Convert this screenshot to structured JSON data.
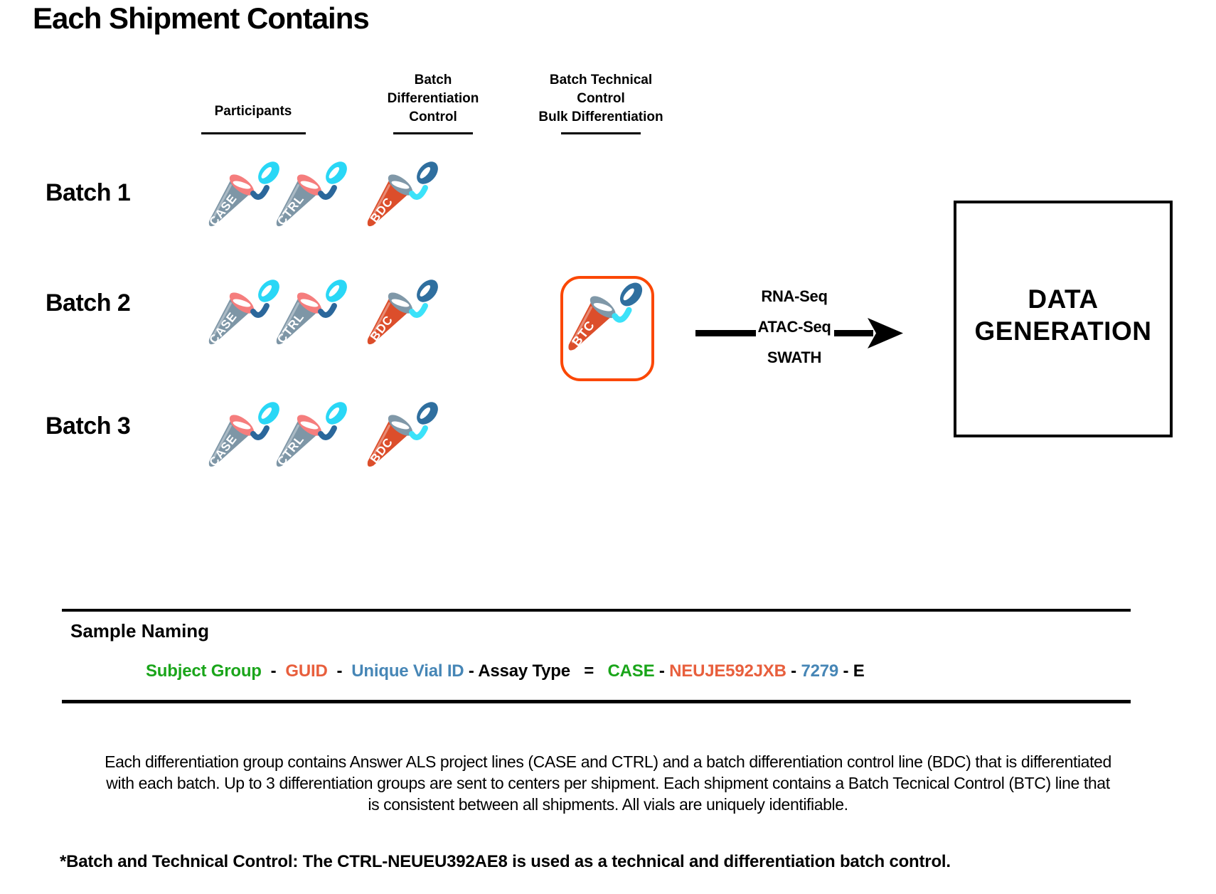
{
  "title": "Each Shipment Contains",
  "columns": {
    "participants": {
      "label": "Participants"
    },
    "bdc": {
      "lines": [
        "Batch",
        "Differentiation",
        "Control"
      ]
    },
    "btc": {
      "lines": [
        "Batch Technical",
        "Control",
        "Bulk Differentiation"
      ]
    }
  },
  "batches": [
    {
      "label": "Batch 1",
      "tubes": [
        {
          "id": "case",
          "label": "CASE",
          "scheme": "participant"
        },
        {
          "id": "ctrl",
          "label": "CTRL",
          "scheme": "participant"
        },
        {
          "id": "bdc",
          "label": "BDC",
          "scheme": "control"
        }
      ]
    },
    {
      "label": "Batch 2",
      "tubes": [
        {
          "id": "case",
          "label": "CASE",
          "scheme": "participant"
        },
        {
          "id": "ctrl",
          "label": "CTRL",
          "scheme": "participant"
        },
        {
          "id": "bdc",
          "label": "BDC",
          "scheme": "control"
        }
      ]
    },
    {
      "label": "Batch 3",
      "tubes": [
        {
          "id": "case",
          "label": "CASE",
          "scheme": "participant"
        },
        {
          "id": "ctrl",
          "label": "CTRL",
          "scheme": "participant"
        },
        {
          "id": "bdc",
          "label": "BDC",
          "scheme": "control"
        }
      ]
    }
  ],
  "btc_shipment": {
    "tube": {
      "id": "btc",
      "label": "BTC",
      "scheme": "control"
    }
  },
  "assays": [
    "RNA-Seq",
    "ATAC-Seq",
    "SWATH"
  ],
  "data_generation": {
    "lines": [
      "DATA",
      "GENERATION"
    ]
  },
  "sample_naming": {
    "title": "Sample Naming",
    "formula_parts": [
      {
        "text": "Subject Group",
        "color": "green"
      },
      {
        "text": "  -  ",
        "color": "black"
      },
      {
        "text": "GUID",
        "color": "orange"
      },
      {
        "text": "  -  ",
        "color": "black"
      },
      {
        "text": "Unique Vial ID",
        "color": "blue"
      },
      {
        "text": " - ",
        "color": "black"
      },
      {
        "text": "Assay Type",
        "color": "black"
      },
      {
        "text": "   =   ",
        "color": "black"
      },
      {
        "text": "CASE",
        "color": "green"
      },
      {
        "text": " - ",
        "color": "black"
      },
      {
        "text": "NEUJE592JXB",
        "color": "orange"
      },
      {
        "text": " - ",
        "color": "black"
      },
      {
        "text": "7279",
        "color": "blue"
      },
      {
        "text": " - ",
        "color": "black"
      },
      {
        "text": "E",
        "color": "black"
      }
    ]
  },
  "description_lines": [
    "Each differentiation group contains Answer ALS project lines (CASE and CTRL) and a batch differentiation control line (BDC) that is differentiated",
    "with each batch. Up to 3 differentiation groups are sent to centers per shipment. Each shipment contains a Batch Tecnical Control (BTC) line that",
    "is consistent between all shipments. All vials are uniquely identifiable."
  ],
  "footnote": "*Batch and Technical Control: The CTRL-NEUEU392AE8 is used as a technical and differentiation batch control.",
  "schemes": {
    "participant": {
      "body": "#7E96A6",
      "rim": "#F57D7D",
      "cap": "#29D7F6",
      "hinge": "#2B679B",
      "label": "#FFFFFF"
    },
    "control": {
      "body": "#DC4E2B",
      "rim": "#8098A8",
      "cap": "#2F6F9F",
      "hinge": "#3BE2F9",
      "label": "#FFFFFF"
    }
  },
  "colors": {
    "green": "#1AA51A",
    "orange": "#E85F3D",
    "blue": "#4686B6",
    "black": "#000000",
    "btc_box_border": "#FB4703",
    "arrow": "#000000"
  }
}
